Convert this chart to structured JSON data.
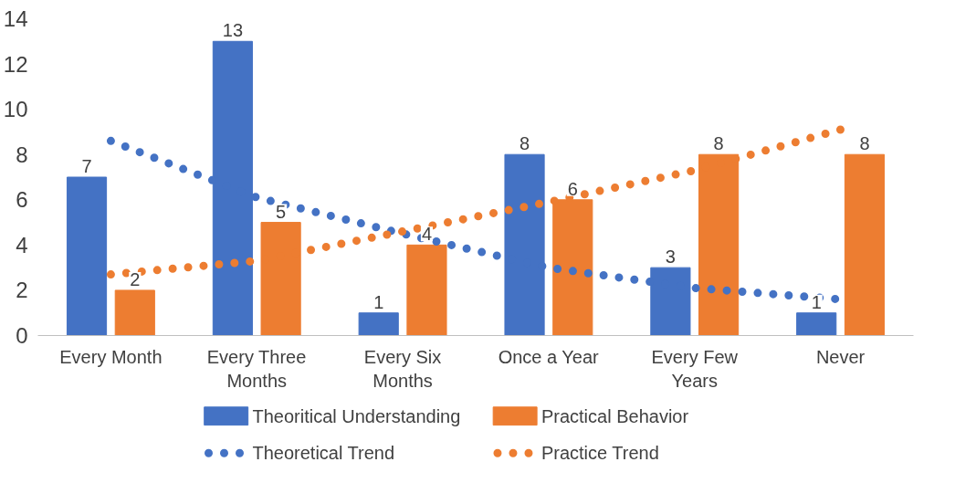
{
  "chart_data": {
    "type": "bar",
    "categories": [
      "Every Month",
      "Every Three Months",
      "Every Six Months",
      "Once a Year",
      "Every Few Years",
      "Never"
    ],
    "series": [
      {
        "name": "Theoritical Understanding",
        "color": "#4472c4",
        "values": [
          7,
          13,
          1,
          8,
          3,
          1
        ],
        "value_labels": [
          "7",
          "13",
          "1",
          "8",
          "3",
          "1"
        ]
      },
      {
        "name": "Practical Behavior",
        "color": "#ed7d31",
        "values": [
          2,
          5,
          4,
          6,
          8,
          8
        ],
        "value_labels": [
          "2",
          "5",
          "4",
          "6",
          "8",
          "8"
        ]
      },
      {
        "name": "Theoretical Trend",
        "type": "line",
        "line_style": "dotted",
        "color": "#4472c4",
        "values": [
          8.6,
          6.1,
          4.5,
          3.0,
          2.1,
          1.6
        ]
      },
      {
        "name": "Practice Trend",
        "type": "line",
        "line_style": "dotted",
        "color": "#ed7d31",
        "values": [
          2.7,
          3.3,
          4.6,
          5.9,
          7.3,
          9.1
        ]
      }
    ],
    "ylim": [
      0,
      14
    ],
    "yticks": [
      0,
      2,
      4,
      6,
      8,
      10,
      12,
      14
    ],
    "grid": false,
    "legend": "bottom"
  }
}
